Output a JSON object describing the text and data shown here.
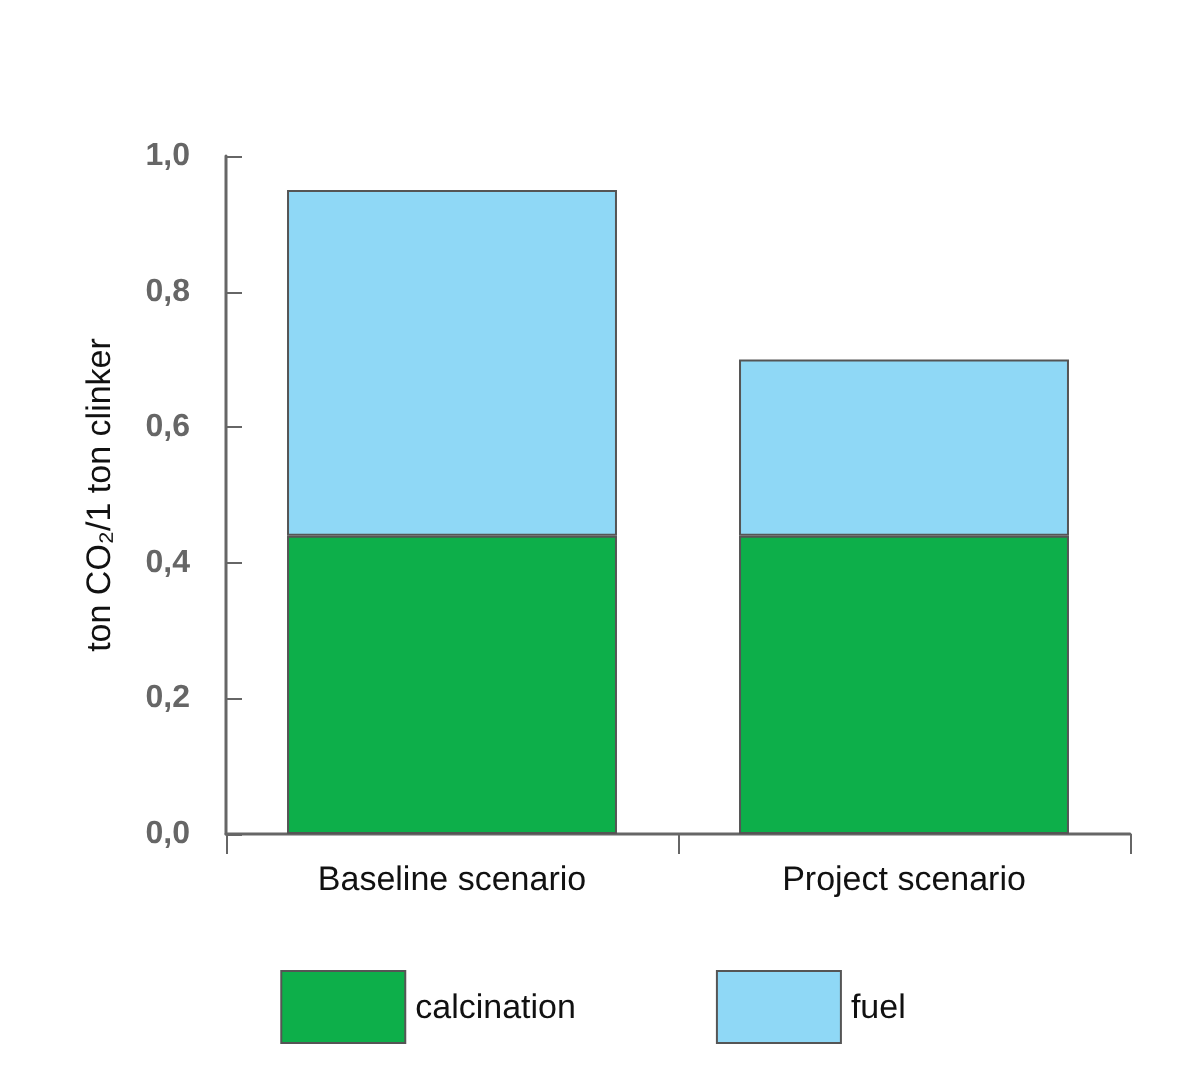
{
  "chart_data": {
    "type": "bar",
    "stacked": true,
    "ylabel": "ton CO₂/1 ton clinker",
    "categories": [
      "Baseline scenario",
      "Project scenario"
    ],
    "series": [
      {
        "name": "calcination",
        "color": "#0daf4a",
        "values": [
          0.44,
          0.44
        ]
      },
      {
        "name": "fuel",
        "color": "#8fd8f6",
        "values": [
          0.51,
          0.26
        ]
      }
    ],
    "ylim": [
      0,
      1
    ],
    "yticks": [
      {
        "value": 0,
        "label": "0,0"
      },
      {
        "value": 0.2,
        "label": "0,2"
      },
      {
        "value": 0.4,
        "label": "0,4"
      },
      {
        "value": 0.6,
        "label": "0,6"
      },
      {
        "value": 0.8,
        "label": "0,8"
      },
      {
        "value": 1,
        "label": "1,0"
      }
    ],
    "grid": false,
    "legend": "bottom"
  }
}
